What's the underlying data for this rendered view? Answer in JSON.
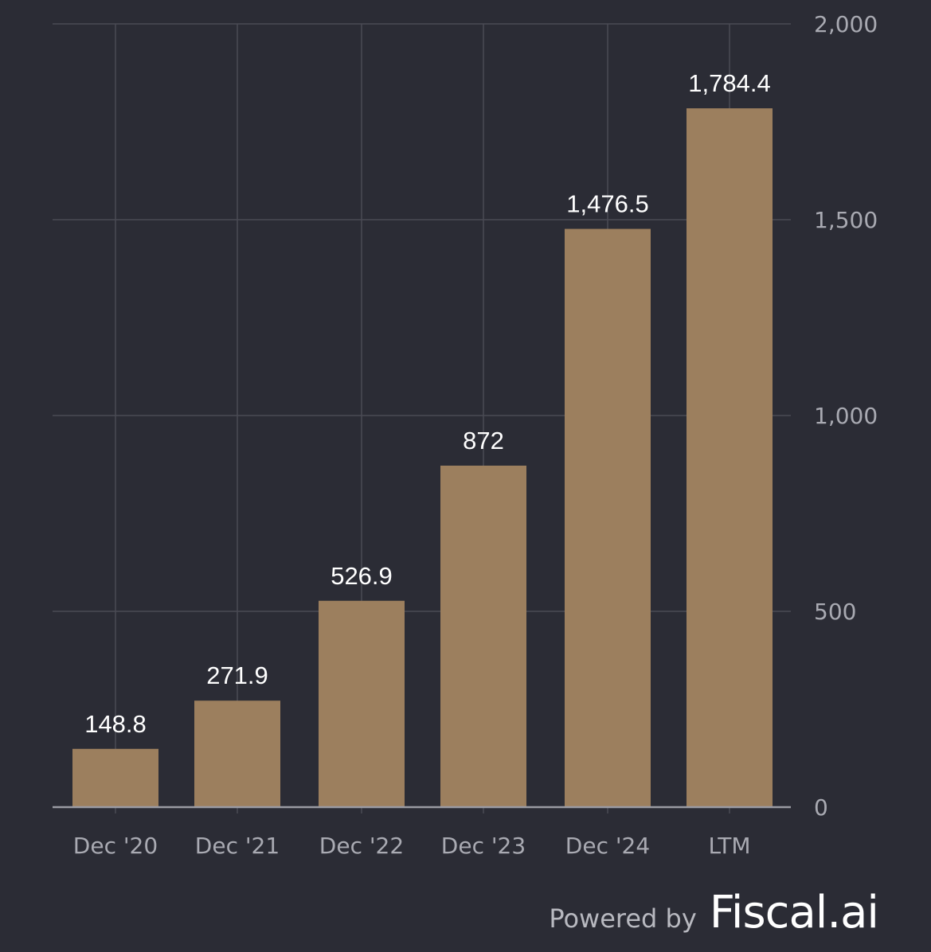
{
  "chart_data": {
    "type": "bar",
    "categories": [
      "Dec '20",
      "Dec '21",
      "Dec '22",
      "Dec '23",
      "Dec '24",
      "LTM"
    ],
    "values": [
      148.8,
      271.9,
      526.9,
      872,
      1476.5,
      1784.4
    ],
    "value_labels": [
      "148.8",
      "271.9",
      "526.9",
      "872",
      "1,476.5",
      "1,784.4"
    ],
    "y_ticks": [
      0,
      500,
      1000,
      1500,
      2000
    ],
    "y_tick_labels": [
      "0",
      "500",
      "1,000",
      "1,500",
      "2,000"
    ],
    "ylim": [
      0,
      2000
    ],
    "y_axis_side": "right",
    "grid": true,
    "title": "",
    "xlabel": "",
    "ylabel": ""
  },
  "footer": {
    "powered_by": "Powered by",
    "brand": "Fiscal.ai"
  },
  "colors": {
    "background": "#2b2c35",
    "bar": "#9c7f5e",
    "grid": "#4a4b55",
    "axis": "#9a9ba3",
    "tick_text": "#a9aab2",
    "label_text": "#ffffff"
  }
}
